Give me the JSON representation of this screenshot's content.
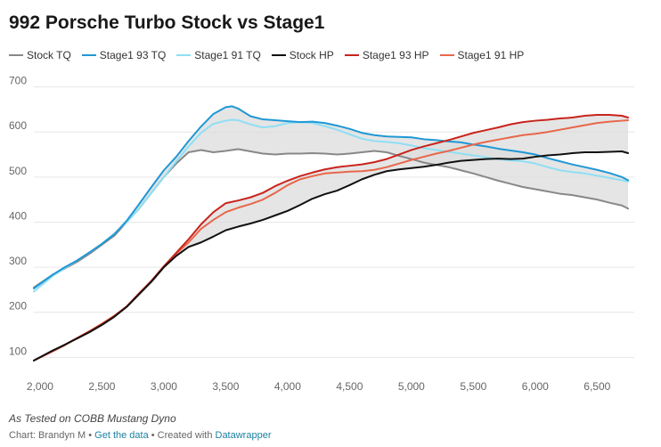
{
  "chart_data": {
    "type": "line",
    "title": "992 Porsche Turbo Stock vs Stage1",
    "x_ticks": [
      "2,000",
      "2,500",
      "3,000",
      "3,500",
      "4,000",
      "4,500",
      "5,000",
      "5,500",
      "6,000",
      "6,500"
    ],
    "x_tick_values": [
      2000,
      2500,
      3000,
      3500,
      4000,
      4500,
      5000,
      5500,
      6000,
      6500
    ],
    "y_ticks": [
      "100",
      "200",
      "300",
      "400",
      "500",
      "600",
      "700"
    ],
    "y_tick_values": [
      100,
      200,
      300,
      400,
      500,
      600,
      700
    ],
    "xlim": [
      1950,
      6800
    ],
    "ylim": [
      75,
      715
    ],
    "grid": true,
    "legend_position": "top-left",
    "shaded_ranges": [
      {
        "between": [
          "Stock TQ",
          "Stage1 93 TQ"
        ],
        "color": "#dcdcdc"
      },
      {
        "between": [
          "Stock HP",
          "Stage1 93 HP"
        ],
        "color": "#dcdcdc"
      }
    ],
    "series": [
      {
        "name": "Stock TQ",
        "color": "#888888",
        "x": [
          1950,
          2100,
          2200,
          2300,
          2400,
          2500,
          2600,
          2700,
          2800,
          2900,
          3000,
          3100,
          3200,
          3300,
          3400,
          3500,
          3600,
          3700,
          3800,
          3900,
          4000,
          4100,
          4200,
          4300,
          4400,
          4500,
          4600,
          4700,
          4800,
          4900,
          5000,
          5100,
          5200,
          5300,
          5400,
          5500,
          5600,
          5700,
          5800,
          5900,
          6000,
          6100,
          6200,
          6300,
          6400,
          6500,
          6600,
          6700,
          6750
        ],
        "y": [
          255,
          283,
          297,
          312,
          330,
          350,
          370,
          400,
          430,
          465,
          500,
          530,
          555,
          560,
          555,
          558,
          562,
          557,
          552,
          550,
          552,
          552,
          553,
          552,
          550,
          552,
          555,
          558,
          555,
          547,
          540,
          532,
          527,
          522,
          515,
          508,
          500,
          492,
          485,
          478,
          473,
          468,
          463,
          460,
          455,
          450,
          443,
          437,
          430
        ]
      },
      {
        "name": "Stage1 93 TQ",
        "color": "#1f98d5",
        "x": [
          1950,
          2100,
          2200,
          2300,
          2400,
          2500,
          2600,
          2700,
          2800,
          2900,
          3000,
          3100,
          3200,
          3300,
          3400,
          3500,
          3550,
          3600,
          3700,
          3800,
          3900,
          4000,
          4100,
          4200,
          4300,
          4400,
          4500,
          4600,
          4700,
          4800,
          4900,
          5000,
          5100,
          5200,
          5300,
          5400,
          5500,
          5600,
          5700,
          5800,
          5900,
          6000,
          6100,
          6200,
          6300,
          6400,
          6500,
          6600,
          6700,
          6750
        ],
        "y": [
          253,
          283,
          300,
          315,
          333,
          352,
          373,
          403,
          440,
          478,
          515,
          545,
          580,
          612,
          640,
          655,
          657,
          652,
          635,
          628,
          626,
          624,
          622,
          623,
          620,
          614,
          607,
          598,
          593,
          590,
          589,
          588,
          584,
          582,
          579,
          577,
          572,
          568,
          563,
          559,
          555,
          550,
          542,
          535,
          528,
          522,
          516,
          509,
          500,
          493
        ]
      },
      {
        "name": "Stage1 91 TQ",
        "color": "#8fdff4",
        "x": [
          1950,
          2100,
          2200,
          2300,
          2400,
          2500,
          2600,
          2700,
          2800,
          2900,
          3000,
          3100,
          3200,
          3300,
          3400,
          3500,
          3550,
          3600,
          3700,
          3800,
          3900,
          4000,
          4100,
          4200,
          4300,
          4400,
          4500,
          4600,
          4700,
          4800,
          4900,
          5000,
          5100,
          5200,
          5300,
          5400,
          5500,
          5600,
          5700,
          5800,
          5900,
          6000,
          6100,
          6200,
          6300,
          6400,
          6500,
          6600,
          6700,
          6750
        ],
        "y": [
          246,
          280,
          298,
          315,
          333,
          352,
          375,
          400,
          430,
          465,
          500,
          535,
          568,
          598,
          618,
          625,
          627,
          626,
          617,
          610,
          613,
          620,
          622,
          620,
          613,
          605,
          595,
          585,
          580,
          578,
          575,
          570,
          564,
          560,
          556,
          552,
          548,
          544,
          540,
          537,
          535,
          530,
          522,
          515,
          511,
          508,
          503,
          498,
          493,
          490
        ]
      },
      {
        "name": "Stock HP",
        "color": "#111111",
        "x": [
          1950,
          2100,
          2200,
          2300,
          2400,
          2500,
          2600,
          2700,
          2800,
          2900,
          3000,
          3100,
          3200,
          3300,
          3400,
          3500,
          3600,
          3700,
          3800,
          3900,
          4000,
          4100,
          4200,
          4300,
          4400,
          4500,
          4600,
          4700,
          4800,
          4900,
          5000,
          5100,
          5200,
          5300,
          5400,
          5500,
          5600,
          5700,
          5800,
          5900,
          6000,
          6100,
          6200,
          6300,
          6400,
          6500,
          6600,
          6700,
          6750
        ],
        "y": [
          93,
          115,
          128,
          142,
          156,
          172,
          190,
          212,
          240,
          268,
          300,
          325,
          345,
          355,
          368,
          382,
          390,
          397,
          405,
          415,
          425,
          438,
          452,
          462,
          470,
          482,
          495,
          505,
          513,
          517,
          520,
          523,
          527,
          532,
          536,
          538,
          540,
          541,
          540,
          541,
          545,
          548,
          550,
          553,
          555,
          555,
          556,
          557,
          553
        ]
      },
      {
        "name": "Stage1 93 HP",
        "color": "#c8241c",
        "x": [
          1950,
          2100,
          2200,
          2300,
          2400,
          2500,
          2600,
          2700,
          2800,
          2900,
          3000,
          3100,
          3200,
          3300,
          3400,
          3500,
          3600,
          3700,
          3800,
          3900,
          4000,
          4100,
          4200,
          4300,
          4400,
          4500,
          4600,
          4700,
          4800,
          4900,
          5000,
          5100,
          5200,
          5300,
          5400,
          5500,
          5600,
          5700,
          5800,
          5900,
          6000,
          6100,
          6200,
          6300,
          6400,
          6500,
          6600,
          6700,
          6750
        ],
        "y": [
          93,
          114,
          128,
          143,
          158,
          173,
          192,
          213,
          242,
          270,
          302,
          332,
          362,
          395,
          422,
          442,
          448,
          455,
          465,
          480,
          492,
          502,
          510,
          517,
          522,
          525,
          528,
          533,
          540,
          550,
          560,
          568,
          575,
          582,
          590,
          598,
          604,
          610,
          617,
          622,
          625,
          627,
          630,
          632,
          636,
          638,
          638,
          636,
          632
        ]
      },
      {
        "name": "Stage1 91 HP",
        "color": "#e8674a",
        "x": [
          1950,
          2100,
          2200,
          2300,
          2400,
          2500,
          2600,
          2700,
          2800,
          2900,
          3000,
          3100,
          3200,
          3300,
          3400,
          3500,
          3600,
          3700,
          3800,
          3900,
          4000,
          4100,
          4200,
          4300,
          4400,
          4500,
          4600,
          4700,
          4800,
          4900,
          5000,
          5100,
          5200,
          5300,
          5400,
          5500,
          5600,
          5700,
          5800,
          5900,
          6000,
          6100,
          6200,
          6300,
          6400,
          6500,
          6600,
          6700,
          6750
        ],
        "y": [
          93,
          113,
          127,
          143,
          158,
          175,
          192,
          213,
          240,
          268,
          300,
          330,
          355,
          385,
          405,
          422,
          432,
          440,
          450,
          465,
          482,
          495,
          502,
          508,
          510,
          512,
          513,
          516,
          522,
          530,
          538,
          545,
          552,
          558,
          565,
          572,
          578,
          583,
          588,
          593,
          596,
          600,
          605,
          610,
          615,
          620,
          623,
          625,
          626
        ]
      }
    ]
  },
  "notes": "As Tested on COBB Mustang Dyno",
  "footer": {
    "credit": "Chart: Brandyn M",
    "sep1": " • ",
    "get_data": "Get the data",
    "sep2": " • Created with ",
    "tool": "Datawrapper"
  }
}
